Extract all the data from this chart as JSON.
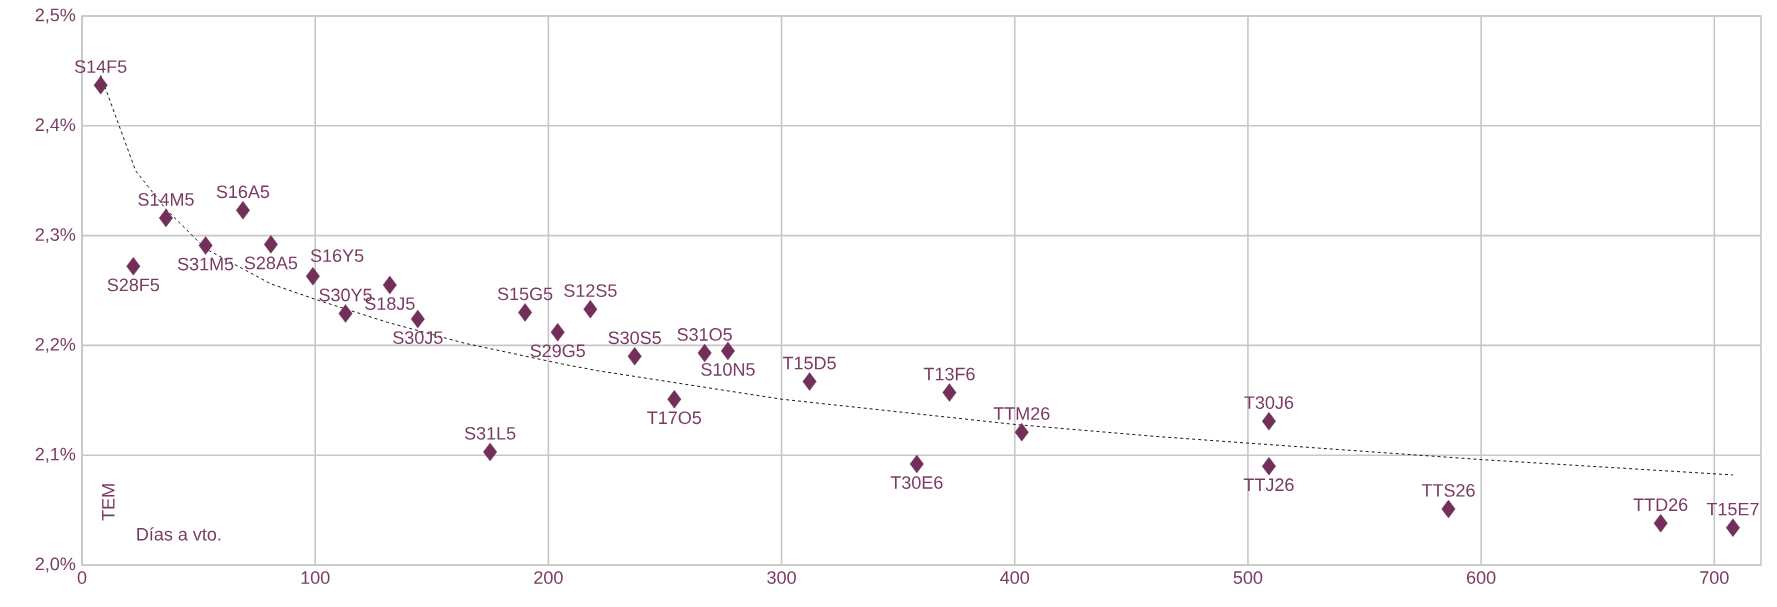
{
  "chart_data": {
    "type": "scatter",
    "xlabel": "Días a vto.",
    "ylabel": "TEM",
    "xlim": [
      0,
      720
    ],
    "ylim": [
      2.0,
      2.5
    ],
    "xticks": [
      0,
      100,
      200,
      300,
      400,
      500,
      600,
      700
    ],
    "yticks": [
      {
        "value": 2.0,
        "label": "2,0%"
      },
      {
        "value": 2.1,
        "label": "2,1%"
      },
      {
        "value": 2.2,
        "label": "2,2%"
      },
      {
        "value": 2.3,
        "label": "2,3%"
      },
      {
        "value": 2.4,
        "label": "2,4%"
      },
      {
        "value": 2.5,
        "label": "2,5%"
      }
    ],
    "grid": true,
    "marker": "diamond",
    "series": [
      {
        "color": "#722f5a",
        "x": [
          8,
          22,
          36,
          53,
          69,
          81,
          99,
          113,
          132,
          144,
          175,
          190,
          204,
          218,
          237,
          254,
          267,
          277,
          312,
          358,
          372,
          403,
          509,
          509,
          586,
          677,
          708
        ],
        "values": [
          2.437,
          2.272,
          2.316,
          2.291,
          2.323,
          2.292,
          2.263,
          2.229,
          2.255,
          2.224,
          2.103,
          2.23,
          2.212,
          2.233,
          2.19,
          2.151,
          2.193,
          2.195,
          2.167,
          2.092,
          2.157,
          2.121,
          2.131,
          2.09,
          2.051,
          2.038,
          2.034
        ]
      },
      {
        "type": "line",
        "color": "#000000",
        "line_style": "dashed",
        "marker": "none",
        "x": [
          8,
          23,
          36,
          53,
          81,
          100,
          131,
          164,
          206,
          221,
          300,
          400,
          461,
          500,
          600,
          708
        ],
        "values": [
          2.446,
          2.359,
          2.324,
          2.288,
          2.256,
          2.242,
          2.221,
          2.202,
          2.183,
          2.177,
          2.151,
          2.128,
          2.117,
          2.111,
          2.096,
          2.082
        ]
      }
    ],
    "annotations": [
      {
        "text": "S14F5",
        "x": 8,
        "y": 2.437
      },
      {
        "text": "S28F5",
        "x": 22,
        "y": 2.272
      },
      {
        "text": "S14M5",
        "x": 36,
        "y": 2.316
      },
      {
        "text": "S31M5",
        "x": 53,
        "y": 2.291
      },
      {
        "text": "S16A5",
        "x": 69,
        "y": 2.323
      },
      {
        "text": "S28A5",
        "x": 81,
        "y": 2.292
      },
      {
        "text": "S16Y5",
        "x": 99,
        "y": 2.263
      },
      {
        "text": "S30Y5",
        "x": 113,
        "y": 2.229
      },
      {
        "text": "S18J5",
        "x": 132,
        "y": 2.255
      },
      {
        "text": "S30J5",
        "x": 144,
        "y": 2.224
      },
      {
        "text": "S31L5",
        "x": 175,
        "y": 2.103
      },
      {
        "text": "S15G5",
        "x": 190,
        "y": 2.23
      },
      {
        "text": "S29G5",
        "x": 204,
        "y": 2.212
      },
      {
        "text": "S12S5",
        "x": 218,
        "y": 2.233
      },
      {
        "text": "S30S5",
        "x": 237,
        "y": 2.19
      },
      {
        "text": "T17O5",
        "x": 254,
        "y": 2.151
      },
      {
        "text": "S31O5",
        "x": 267,
        "y": 2.193
      },
      {
        "text": "S10N5",
        "x": 277,
        "y": 2.195
      },
      {
        "text": "T15D5",
        "x": 312,
        "y": 2.167
      },
      {
        "text": "T30E6",
        "x": 358,
        "y": 2.092
      },
      {
        "text": "T13F6",
        "x": 372,
        "y": 2.157
      },
      {
        "text": "TTM26",
        "x": 403,
        "y": 2.121
      },
      {
        "text": "T30J6",
        "x": 509,
        "y": 2.131
      },
      {
        "text": "TTJ26",
        "x": 509,
        "y": 2.09
      },
      {
        "text": "TTS26",
        "x": 586,
        "y": 2.051
      },
      {
        "text": "TTD26",
        "x": 677,
        "y": 2.038
      },
      {
        "text": "T15E7",
        "x": 708,
        "y": 2.034
      }
    ]
  }
}
